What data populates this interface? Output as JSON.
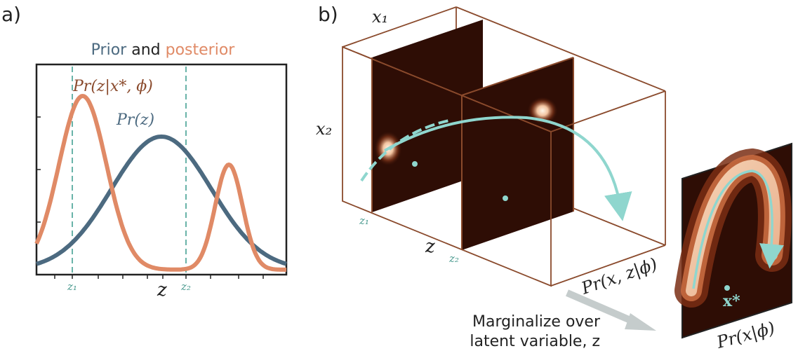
{
  "panel_a": {
    "label": "a)",
    "title_prior": "Prior",
    "title_and": "and",
    "title_posterior": "posterior",
    "posterior_label": "Pr(z|x*, ϕ)",
    "prior_label": "Pr(z)",
    "xlabel": "z",
    "z1_label": "z₁",
    "z2_label": "z₂"
  },
  "panel_b": {
    "label": "b)",
    "x1_label": "x₁",
    "x2_label": "x₂",
    "z_label": "z",
    "z1_label": "z₁",
    "z2_label": "z₂",
    "joint_label": "Pr(x, z|ϕ)",
    "marginal_label": "Pr(x|ϕ)",
    "xstar_label": "x*",
    "marginalize_line1": "Marginalize over",
    "marginalize_line2": "latent variable, z"
  },
  "colors": {
    "prior": "#4c6a80",
    "posterior": "#e08a66",
    "dashed": "#69b3a8",
    "box": "#8a4a2c",
    "slice_dark": "#2e0d05",
    "curve": "#8fd6ce",
    "arrow_gray": "#c5cccc"
  },
  "chart_data": {
    "type": "line",
    "title": "Prior and posterior",
    "xlabel": "z",
    "series": [
      {
        "name": "Pr(z|x*, ϕ)",
        "shape": "bimodal",
        "peaks_relative": [
          0.18,
          0.77
        ]
      },
      {
        "name": "Pr(z)",
        "shape": "gaussian",
        "peak_relative": 0.5
      }
    ],
    "markers": [
      "z₁",
      "z₂"
    ]
  }
}
